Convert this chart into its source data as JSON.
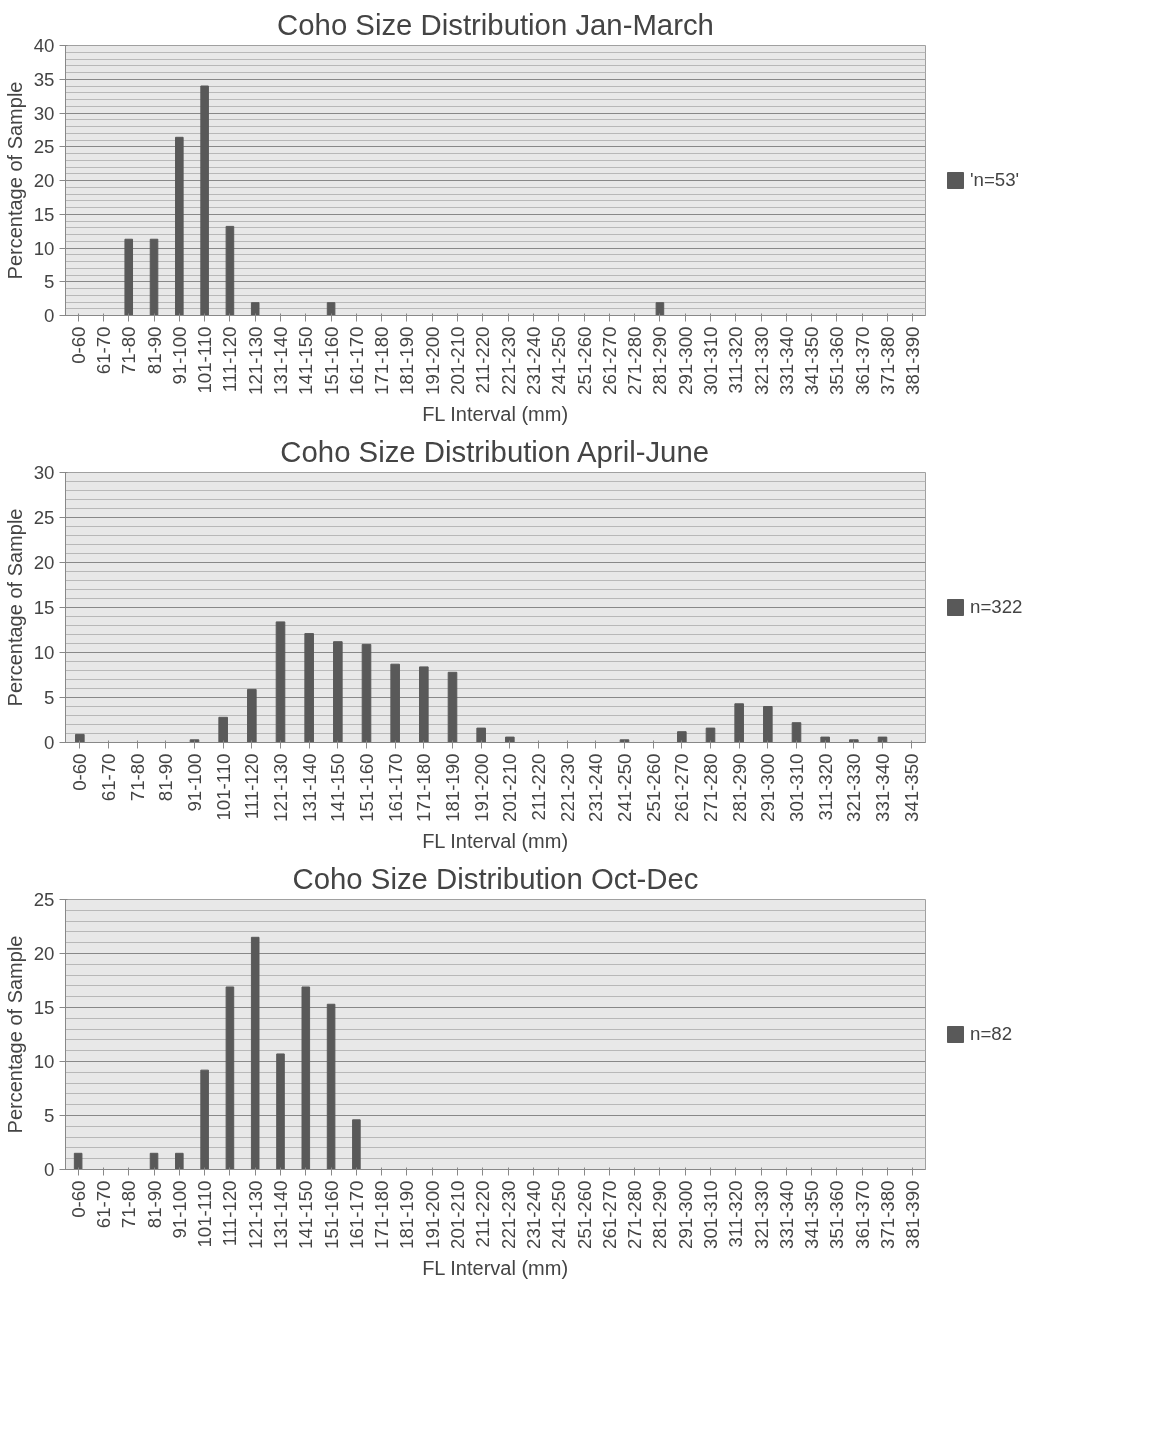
{
  "chart_data": [
    {
      "type": "bar",
      "title": "Coho Size Distribution Jan-March",
      "xlabel": "FL Interval (mm)",
      "ylabel": "Percentage of Sample",
      "categories": [
        "0-60",
        "61-70",
        "71-80",
        "81-90",
        "91-100",
        "101-110",
        "111-120",
        "121-130",
        "131-140",
        "141-150",
        "151-160",
        "161-170",
        "171-180",
        "181-190",
        "191-200",
        "201-210",
        "211-220",
        "221-230",
        "231-240",
        "241-250",
        "251-260",
        "261-270",
        "271-280",
        "281-290",
        "291-300",
        "301-310",
        "311-320",
        "321-330",
        "331-340",
        "341-350",
        "351-360",
        "361-370",
        "371-380",
        "381-390"
      ],
      "series": [
        {
          "name": "'n=53'",
          "color": "#595959",
          "values": [
            0,
            0,
            11.3,
            11.3,
            26.4,
            34.0,
            13.2,
            1.9,
            0,
            0,
            1.9,
            0,
            0,
            0,
            0,
            0,
            0,
            0,
            0,
            0,
            0,
            0,
            0,
            1.9,
            0,
            0,
            0,
            0,
            0,
            0,
            0,
            0,
            0,
            0
          ]
        }
      ],
      "ylim": [
        0,
        40
      ],
      "yticks": [
        0,
        5,
        10,
        15,
        20,
        25,
        30,
        35,
        40
      ],
      "grid": "y",
      "legend": "right"
    },
    {
      "type": "bar",
      "title": "Coho Size Distribution April-June",
      "xlabel": "FL Interval (mm)",
      "ylabel": "Percentage of Sample",
      "categories": [
        "0-60",
        "61-70",
        "71-80",
        "81-90",
        "91-100",
        "101-110",
        "111-120",
        "121-130",
        "131-140",
        "141-150",
        "151-160",
        "161-170",
        "171-180",
        "181-190",
        "191-200",
        "201-210",
        "211-220",
        "221-230",
        "231-240",
        "241-250",
        "251-260",
        "261-270",
        "271-280",
        "281-290",
        "291-300",
        "301-310",
        "311-320",
        "321-330",
        "331-340",
        "341-350"
      ],
      "series": [
        {
          "name": "n=322",
          "color": "#595959",
          "values": [
            0.9,
            0,
            0,
            0,
            0.3,
            2.8,
            5.9,
            13.4,
            12.1,
            11.2,
            10.9,
            8.7,
            8.4,
            7.8,
            1.6,
            0.6,
            0,
            0,
            0,
            0.3,
            0,
            1.2,
            1.6,
            4.3,
            4.0,
            2.2,
            0.6,
            0.3,
            0.6,
            0
          ]
        }
      ],
      "ylim": [
        0,
        30
      ],
      "yticks": [
        0,
        5,
        10,
        15,
        20,
        25,
        30
      ],
      "grid": "y",
      "legend": "right"
    },
    {
      "type": "bar",
      "title": "Coho Size Distribution Oct-Dec",
      "xlabel": "FL Interval (mm)",
      "ylabel": "Percentage of Sample",
      "categories": [
        "0-60",
        "61-70",
        "71-80",
        "81-90",
        "91-100",
        "101-110",
        "111-120",
        "121-130",
        "131-140",
        "141-150",
        "151-160",
        "161-170",
        "171-180",
        "181-190",
        "191-200",
        "201-210",
        "211-220",
        "221-230",
        "231-240",
        "241-250",
        "251-260",
        "261-270",
        "271-280",
        "281-290",
        "291-300",
        "301-310",
        "311-320",
        "321-330",
        "331-340",
        "341-350",
        "351-360",
        "361-370",
        "371-380",
        "381-390"
      ],
      "series": [
        {
          "name": "n=82",
          "color": "#595959",
          "values": [
            1.5,
            0,
            0,
            1.5,
            1.5,
            9.2,
            16.9,
            21.5,
            10.7,
            16.9,
            15.3,
            4.6,
            0,
            0,
            0,
            0,
            0,
            0,
            0,
            0,
            0,
            0,
            0,
            0,
            0,
            0,
            0,
            0,
            0,
            0,
            0,
            0,
            0,
            0
          ]
        }
      ],
      "ylim": [
        0,
        25
      ],
      "yticks": [
        0,
        5,
        10,
        15,
        20,
        25
      ],
      "grid": "y",
      "legend": "right"
    }
  ]
}
